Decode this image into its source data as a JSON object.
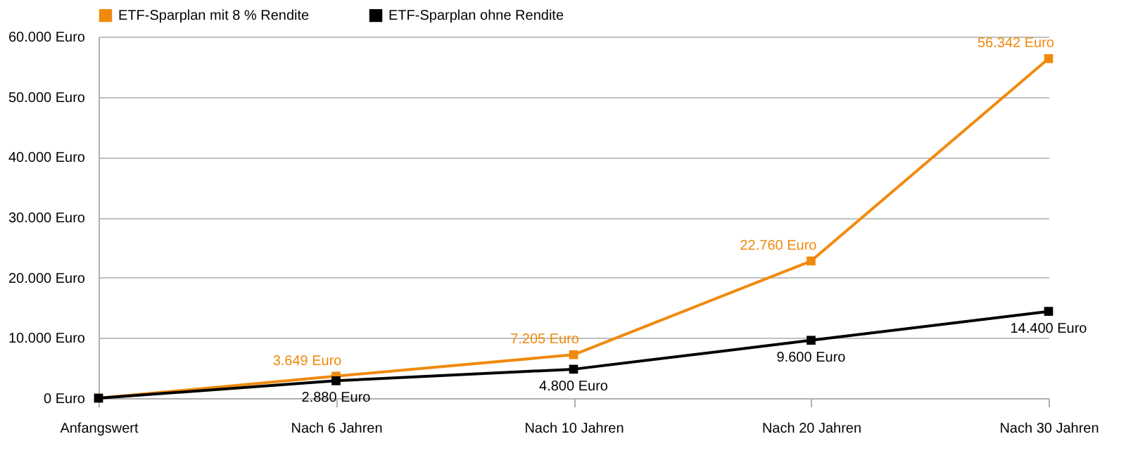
{
  "chart_data": {
    "type": "line",
    "categories": [
      "Anfangswert",
      "Nach 6 Jahren",
      "Nach 10 Jahren",
      "Nach 20 Jahren",
      "Nach 30 Jahren"
    ],
    "series": [
      {
        "name": "ETF-Sparplan mit 8 % Rendite",
        "color": "#f08a0e",
        "values": [
          0,
          3649,
          7205,
          22760,
          56342
        ],
        "value_labels": [
          null,
          "3.649 Euro",
          "7.205 Euro",
          "22.760 Euro",
          "56.342 Euro"
        ]
      },
      {
        "name": "ETF-Sparplan ohne Rendite",
        "color": "#000000",
        "values": [
          0,
          2880,
          4800,
          9600,
          14400
        ],
        "value_labels": [
          null,
          "2.880 Euro",
          "4.800 Euro",
          "9.600 Euro",
          "14.400 Euro"
        ]
      }
    ],
    "ylim": [
      0,
      60000
    ],
    "yticks": [
      {
        "value": 0,
        "label": "0 Euro"
      },
      {
        "value": 10000,
        "label": "10.000 Euro"
      },
      {
        "value": 20000,
        "label": "20.000 Euro"
      },
      {
        "value": 30000,
        "label": "30.000 Euro"
      },
      {
        "value": 40000,
        "label": "40.000 Euro"
      },
      {
        "value": 50000,
        "label": "50.000 Euro"
      },
      {
        "value": 60000,
        "label": "60.000 Euro"
      }
    ],
    "grid": "y",
    "legend": "top left",
    "marker": "square",
    "line_style": "solid"
  }
}
